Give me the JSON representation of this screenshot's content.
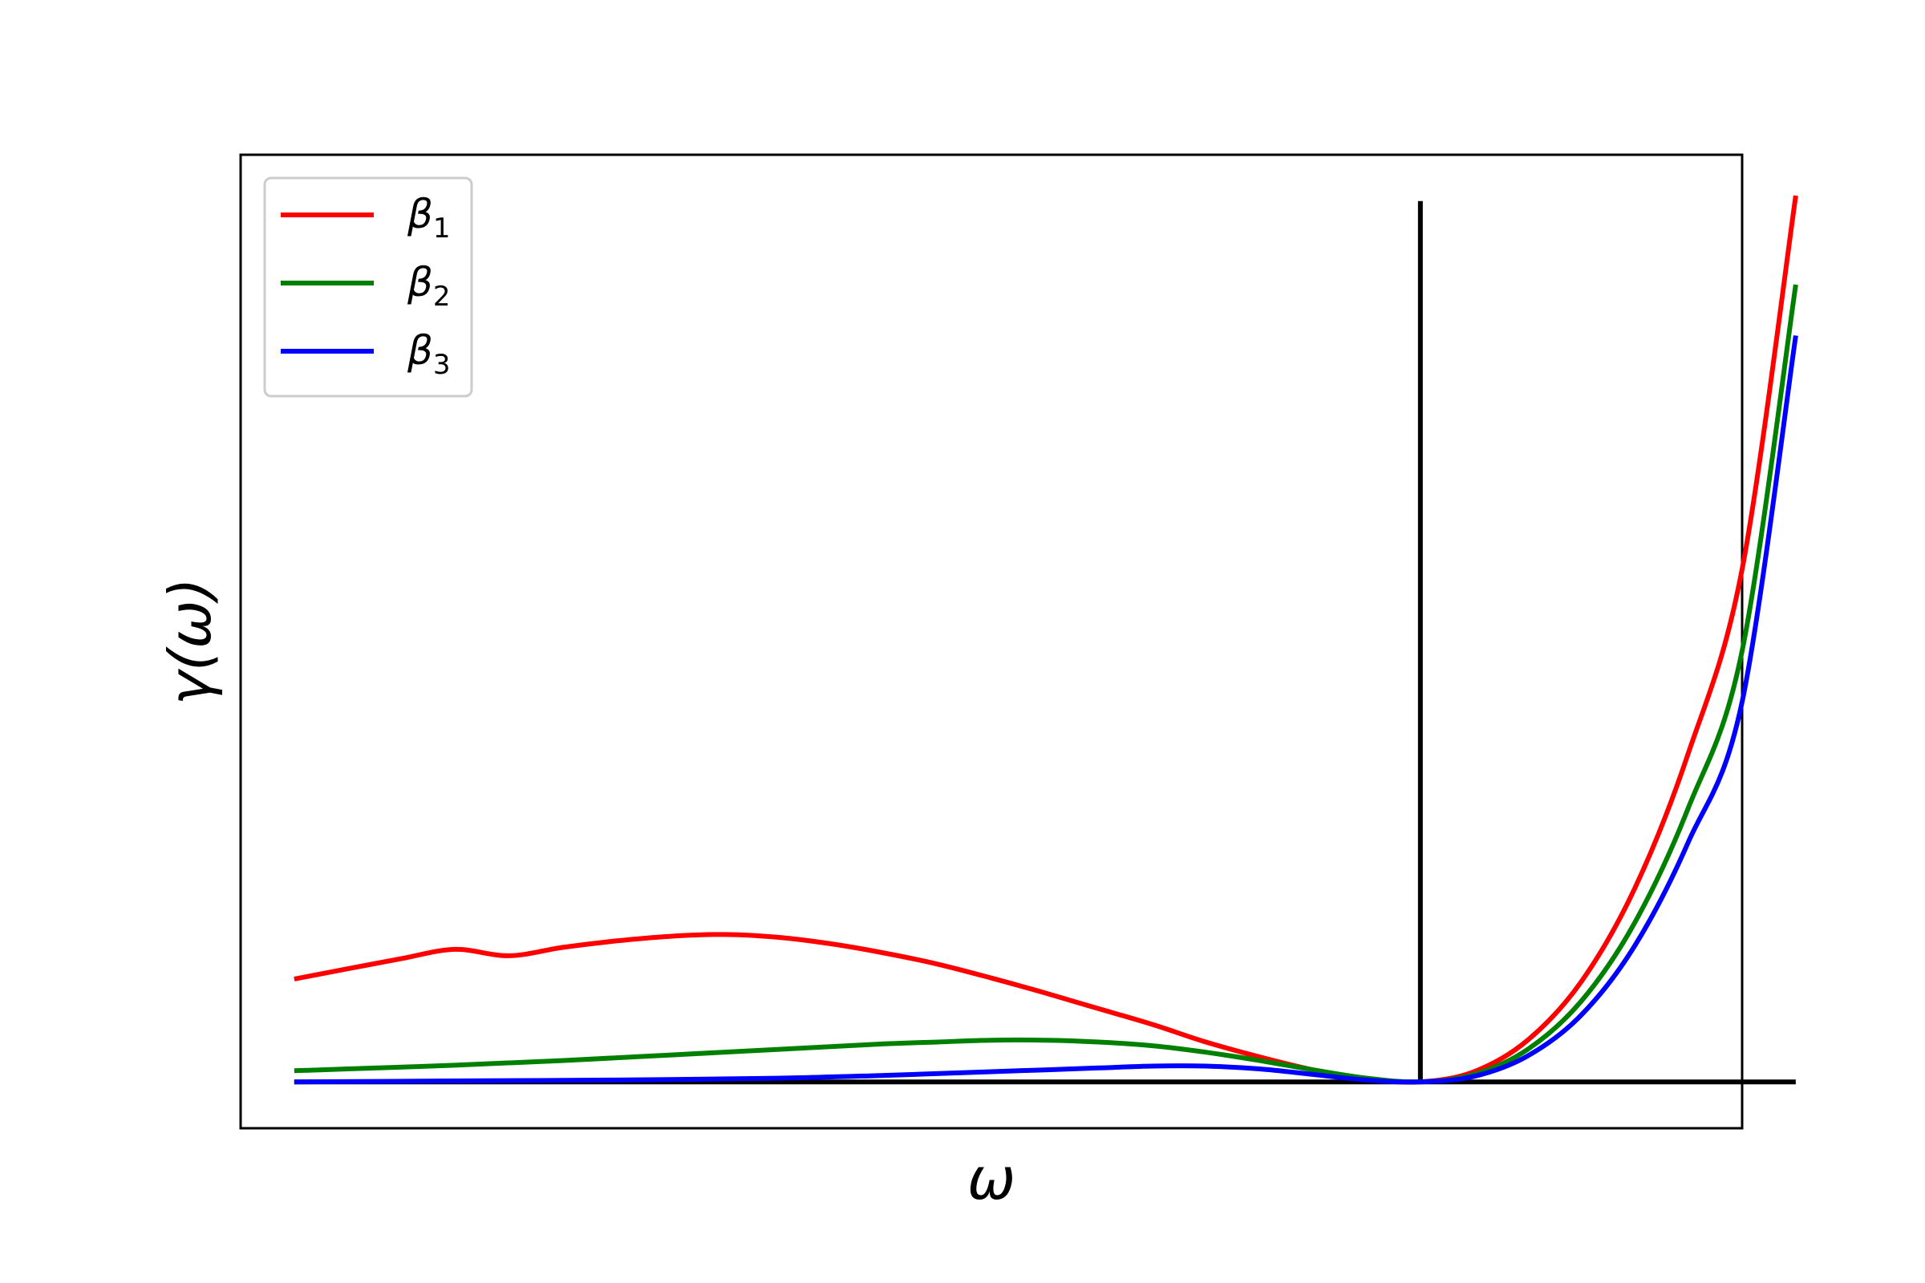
{
  "chart_data": {
    "type": "line",
    "xlabel": "ω",
    "ylabel": "γ(ω)",
    "xlim": [
      -1.1,
      0.3
    ],
    "ylim": [
      -0.05,
      1.0
    ],
    "grid": false,
    "ticks": "hidden",
    "legend": {
      "position": "top-left",
      "entries": [
        {
          "symbol": "β",
          "subscript": "1"
        },
        {
          "symbol": "β",
          "subscript": "2"
        },
        {
          "symbol": "β",
          "subscript": "3"
        }
      ]
    },
    "reference_lines": [
      {
        "kind": "vertical",
        "x": 0,
        "y_from": 0,
        "y_to": 0.95,
        "color": "#000000"
      },
      {
        "kind": "horizontal",
        "y": 0,
        "x_from": -1.05,
        "x_to": 0.35,
        "color": "#000000"
      }
    ],
    "series": [
      {
        "color": "#ff0000",
        "x": [
          -1.05,
          -1.0,
          -0.95,
          -0.9,
          -0.85,
          -0.8,
          -0.75,
          -0.7,
          -0.65,
          -0.6,
          -0.55,
          -0.5,
          -0.45,
          -0.4,
          -0.35,
          -0.3,
          -0.25,
          -0.2,
          -0.15,
          -0.1,
          -0.05,
          0.0,
          0.05,
          0.1,
          0.15,
          0.2,
          0.25,
          0.3,
          0.35
        ],
        "y": [
          0.111,
          0.122,
          0.133,
          0.143,
          0.136,
          0.145,
          0.152,
          0.157,
          0.159,
          0.156,
          0.149,
          0.139,
          0.127,
          0.112,
          0.096,
          0.079,
          0.062,
          0.043,
          0.027,
          0.013,
          0.003,
          0.0,
          0.011,
          0.045,
          0.108,
          0.209,
          0.355,
          0.553,
          0.956
        ]
      },
      {
        "color": "#008000",
        "x": [
          -1.05,
          -1.0,
          -0.9,
          -0.8,
          -0.7,
          -0.6,
          -0.5,
          -0.45,
          -0.4,
          -0.35,
          -0.3,
          -0.25,
          -0.2,
          -0.15,
          -0.1,
          -0.05,
          0.0,
          0.05,
          0.1,
          0.15,
          0.2,
          0.25,
          0.3,
          0.35
        ],
        "y": [
          0.012,
          0.014,
          0.018,
          0.023,
          0.029,
          0.035,
          0.041,
          0.043,
          0.045,
          0.045,
          0.043,
          0.039,
          0.032,
          0.023,
          0.013,
          0.004,
          0.0,
          0.008,
          0.035,
          0.087,
          0.172,
          0.296,
          0.465,
          0.86
        ]
      },
      {
        "color": "#0000ff",
        "x": [
          -1.05,
          -0.9,
          -0.75,
          -0.6,
          -0.5,
          -0.4,
          -0.35,
          -0.3,
          -0.25,
          -0.2,
          -0.15,
          -0.1,
          -0.05,
          0.0,
          0.05,
          0.1,
          0.15,
          0.2,
          0.25,
          0.3,
          0.35
        ],
        "y": [
          0.0,
          0.001,
          0.002,
          0.004,
          0.007,
          0.011,
          0.013,
          0.015,
          0.017,
          0.017,
          0.014,
          0.008,
          0.002,
          0.0,
          0.006,
          0.028,
          0.072,
          0.147,
          0.259,
          0.41,
          0.805
        ]
      }
    ]
  }
}
